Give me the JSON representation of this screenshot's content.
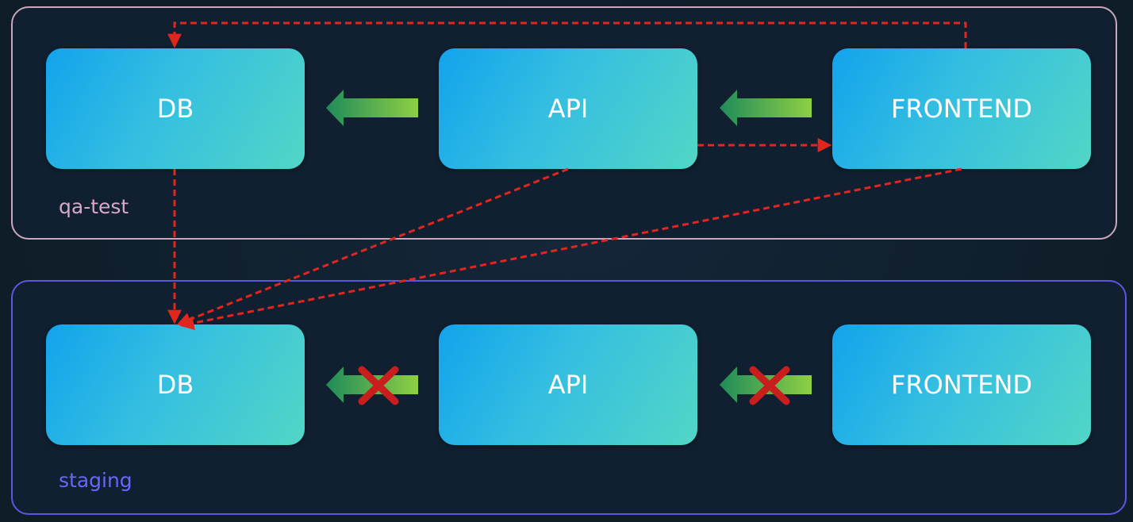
{
  "namespaces": {
    "qa_test": {
      "label": "qa-test",
      "nodes": {
        "db": "DB",
        "api": "API",
        "frontend": "FRONTEND"
      }
    },
    "staging": {
      "label": "staging",
      "nodes": {
        "db": "DB",
        "api": "API",
        "frontend": "FRONTEND"
      }
    }
  },
  "colors": {
    "qa_border": "#caa7bf",
    "staging_border": "#5b56e3",
    "node_gradient_start": "#12a3ec",
    "node_gradient_end": "#52d6c6",
    "allowed_arrow": "#7cc24a",
    "cross_namespace_link": "#e0261f",
    "blocked_mark": "#d01f1f"
  }
}
